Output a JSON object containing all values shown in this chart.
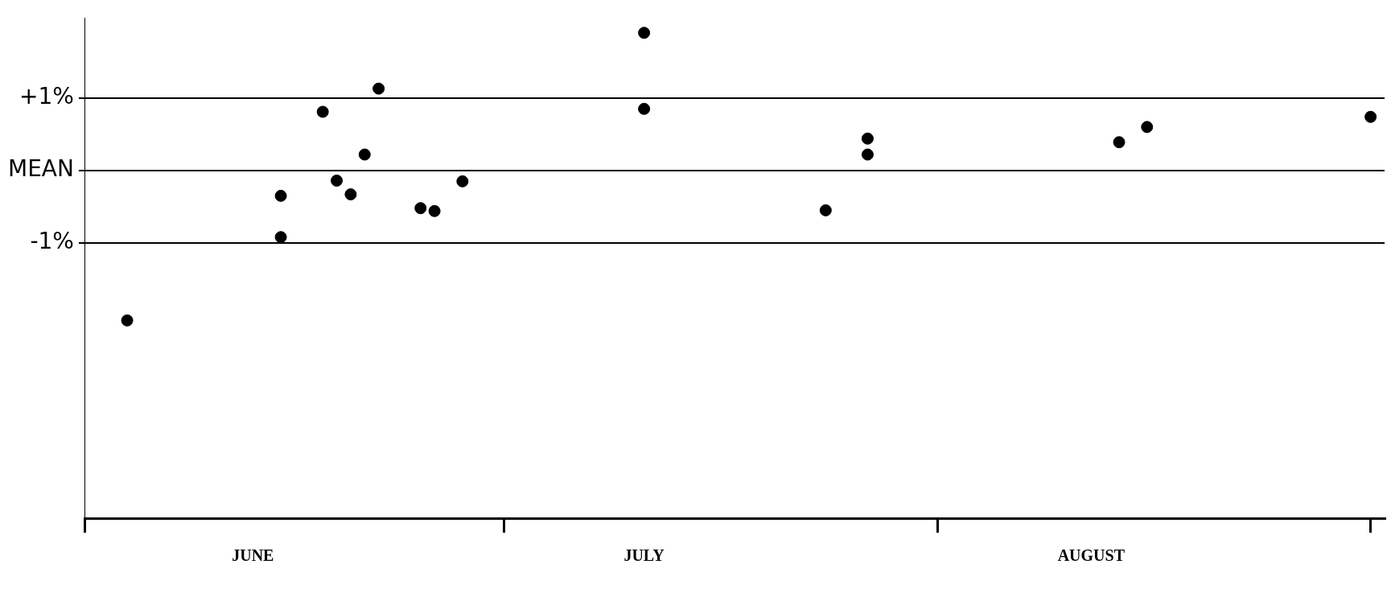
{
  "chart_data": {
    "type": "scatter",
    "x": [
      "--06-04",
      "--06-15",
      "--06-15",
      "--06-18",
      "--06-19",
      "--06-20",
      "--06-21",
      "--06-22",
      "--06-25",
      "--06-26",
      "--06-28",
      "--07-11",
      "--07-11",
      "--07-24",
      "--07-27",
      "--07-27",
      "--08-14",
      "--08-16",
      "--09-01"
    ],
    "values": [
      -2.07,
      -0.35,
      -0.92,
      0.81,
      -0.14,
      -0.33,
      0.22,
      1.13,
      -0.52,
      -0.56,
      -0.15,
      1.9,
      0.85,
      -0.55,
      0.44,
      0.22,
      0.39,
      0.6,
      0.74
    ],
    "color": "#000000",
    "marker": "circle",
    "legend": false,
    "grid": "y",
    "xlim": [
      "--06-01",
      "--09-02"
    ],
    "xticks": [
      {
        "value": "--06-01",
        "label": null
      },
      {
        "value": "--06-13",
        "label": "JUNE"
      },
      {
        "value": "--07-01",
        "label": null
      },
      {
        "value": "--07-11",
        "label": "JULY"
      },
      {
        "value": "--08-01",
        "label": null
      },
      {
        "value": "--08-12",
        "label": "AUGUST"
      },
      {
        "value": "--09-01",
        "label": null
      }
    ],
    "ylim": [
      -4.8,
      2.1
    ],
    "yticks": [
      {
        "value": 1,
        "label": "+1%"
      },
      {
        "value": 0,
        "label": "MEAN"
      },
      {
        "value": -1,
        "label": "-1%"
      }
    ]
  }
}
